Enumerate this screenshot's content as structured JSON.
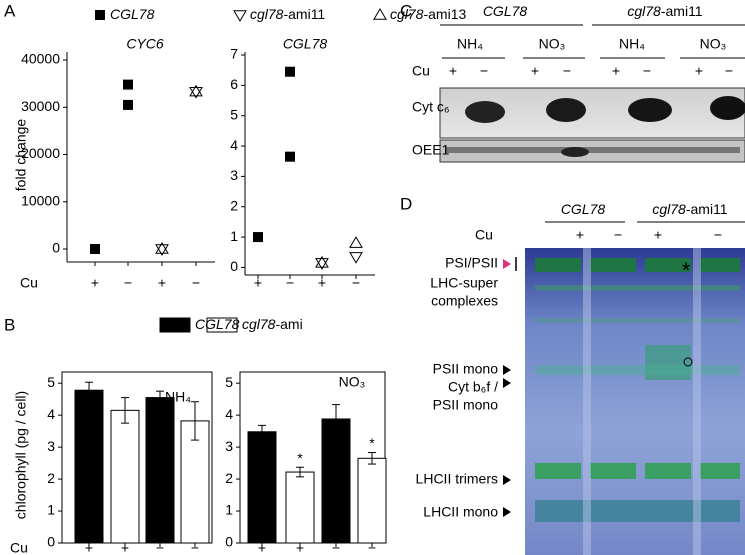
{
  "panel_labels": [
    "A",
    "B",
    "C",
    "D"
  ],
  "chart_data": [
    {
      "type": "scatter",
      "title": "CYC6",
      "y_label": "fold change",
      "x_label": "Cu",
      "categories": [
        "+",
        "−",
        "+",
        "−"
      ],
      "series": [
        {
          "name": "CGL78",
          "marker": "square",
          "color": "#000000",
          "values": [
            [
              0
            ],
            [
              34800,
              30500
            ],
            [],
            []
          ]
        },
        {
          "name": "cgl78-ami11",
          "marker": "triangle-down",
          "color": "#ffffff",
          "values": [
            [],
            [],
            [
              0
            ],
            [
              33300
            ]
          ]
        },
        {
          "name": "cgl78-ami13",
          "marker": "triangle-up",
          "color": "#ffffff",
          "values": [
            [],
            [],
            [
              0
            ],
            [
              33300
            ]
          ]
        }
      ],
      "ylim": [
        -2750,
        41700
      ],
      "yticks": [
        0,
        10000,
        20000,
        30000,
        40000
      ]
    },
    {
      "type": "scatter",
      "title": "CGL78",
      "categories": [
        "+",
        "−",
        "+",
        "−"
      ],
      "series": [
        {
          "marker": "square",
          "color": "#000000",
          "values": [
            [
              1
            ],
            [
              6.45,
              3.65
            ],
            [],
            []
          ]
        },
        {
          "marker": "triangle-down",
          "color": "#ffffff",
          "values": [
            [],
            [],
            [
              0.15
            ],
            [
              0.35
            ]
          ]
        },
        {
          "marker": "triangle-up",
          "color": "#ffffff",
          "values": [
            [],
            [],
            [
              0.15
            ],
            [
              0.8
            ]
          ]
        }
      ],
      "ylim": [
        -0.25,
        7.1
      ],
      "yticks": [
        0,
        1,
        2,
        3,
        4,
        5,
        6,
        7
      ]
    },
    {
      "type": "bar",
      "y_label": "chlorophyll (pg / cell)",
      "x_label": "Cu",
      "annotation": "NH₄",
      "categories": [
        "+",
        "+",
        "−",
        "−"
      ],
      "series": [
        {
          "name": "CGL78",
          "color": "#000000",
          "values": [
            4.78,
            null,
            4.55,
            null
          ],
          "errors": [
            0.25,
            null,
            0.2,
            null
          ]
        },
        {
          "name": "cgl78-ami",
          "color": "#ffffff",
          "values": [
            null,
            4.15,
            null,
            3.82
          ],
          "errors": [
            null,
            0.4,
            null,
            0.6
          ]
        }
      ],
      "ylim": [
        0,
        5.35
      ],
      "yticks": [
        0,
        1,
        2,
        3,
        4,
        5
      ]
    },
    {
      "type": "bar",
      "annotation": "NO₃",
      "categories": [
        "+",
        "+",
        "−",
        "−"
      ],
      "series": [
        {
          "color": "#000000",
          "values": [
            3.48,
            null,
            3.88,
            null
          ],
          "errors": [
            0.2,
            null,
            0.45,
            null
          ]
        },
        {
          "color": "#ffffff",
          "values": [
            null,
            2.22,
            null,
            2.65
          ],
          "errors": [
            null,
            0.15,
            null,
            0.18
          ],
          "markers": [
            null,
            "*",
            null,
            "*"
          ]
        }
      ],
      "ylim": [
        0,
        5.35
      ],
      "yticks": [
        0,
        1,
        2,
        3,
        4,
        5
      ]
    }
  ],
  "blot": {
    "genotypes": [
      "CGL78",
      "cgl78-ami11"
    ],
    "nitrogen": [
      "NH₄",
      "NO₃",
      "NH₄",
      "NO₃"
    ],
    "cu_label": "Cu",
    "cu": [
      "+",
      "−",
      "+",
      "−",
      "+",
      "−",
      "+",
      "−"
    ],
    "rows": [
      "Cyt c₆",
      "OEE1"
    ]
  },
  "gel": {
    "genotypes": [
      "CGL78",
      "cgl78-ami11"
    ],
    "cu_label": "Cu",
    "cu": [
      "+",
      "−",
      "+",
      "−"
    ],
    "bands": [
      [
        "PSI/PSII",
        "LHC-super",
        "complexes"
      ],
      [
        "PSII mono"
      ],
      [
        "Cyt b₆f /",
        "PSII mono"
      ],
      [
        "LHCII trimers"
      ],
      [
        "LHCII mono"
      ]
    ],
    "asterisk": "*"
  }
}
